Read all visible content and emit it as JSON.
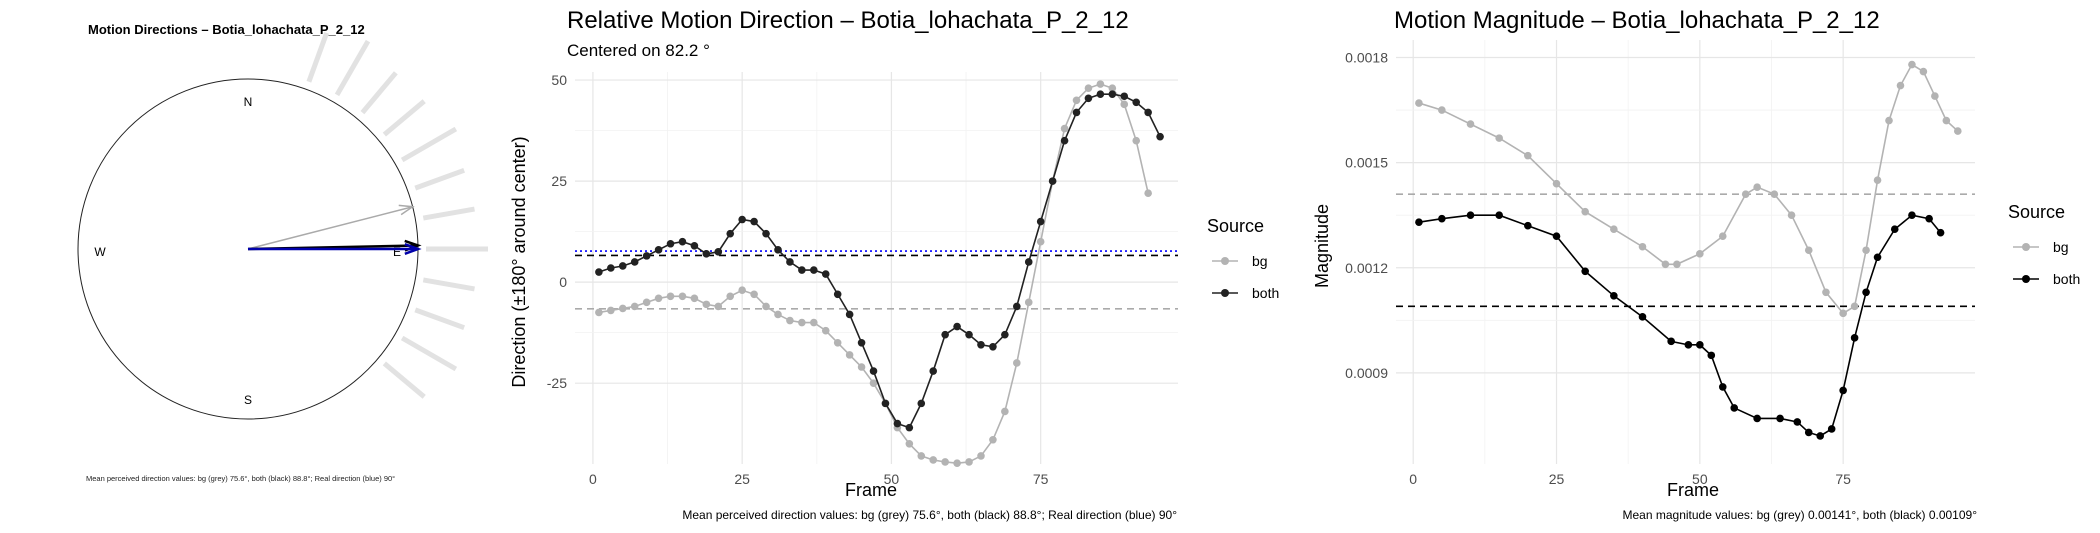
{
  "chart_data": [
    {
      "type": "compass",
      "title": "Motion Directions – Botia_lohachata_P_2_12",
      "cardinals": [
        "N",
        "E",
        "S",
        "W"
      ],
      "mean_arrows": [
        {
          "series": "bg",
          "angle_deg": 75.6,
          "color": "#aaaaaa"
        },
        {
          "series": "both",
          "angle_deg": 88.8,
          "color": "#000000"
        },
        {
          "series": "real",
          "angle_deg": 90,
          "color": "#0000aa"
        }
      ],
      "caption": "Mean perceived direction values: bg (grey) 75.6°, both (black) 88.8°; Real direction (blue) 90°"
    },
    {
      "type": "line",
      "title": "Relative Motion Direction – Botia_lohachata_P_2_12",
      "subtitle": "Centered on  82.2 °",
      "xlabel": "Frame",
      "ylabel": "Direction (±180° around center)",
      "xlim": [
        -3,
        98
      ],
      "ylim": [
        -45,
        52
      ],
      "xticks": [
        0,
        25,
        50,
        75
      ],
      "yticks": [
        -25,
        0,
        25,
        50
      ],
      "legend_title": "Source",
      "series": [
        {
          "name": "bg",
          "color": "#b3b3b3",
          "points": [
            [
              1,
              -7.5
            ],
            [
              3,
              -7
            ],
            [
              5,
              -6.5
            ],
            [
              7,
              -6
            ],
            [
              9,
              -5
            ],
            [
              11,
              -4
            ],
            [
              13,
              -3.5
            ],
            [
              15,
              -3.5
            ],
            [
              17,
              -4
            ],
            [
              19,
              -5.5
            ],
            [
              21,
              -6
            ],
            [
              23,
              -3.5
            ],
            [
              25,
              -2
            ],
            [
              27,
              -3
            ],
            [
              29,
              -6
            ],
            [
              31,
              -8
            ],
            [
              33,
              -9.5
            ],
            [
              35,
              -10
            ],
            [
              37,
              -10
            ],
            [
              39,
              -12
            ],
            [
              41,
              -15
            ],
            [
              43,
              -18
            ],
            [
              45,
              -21
            ],
            [
              47,
              -25
            ],
            [
              49,
              -30
            ],
            [
              51,
              -36
            ],
            [
              53,
              -40
            ],
            [
              55,
              -43
            ],
            [
              57,
              -44
            ],
            [
              59,
              -44.5
            ],
            [
              61,
              -44.8
            ],
            [
              63,
              -44.5
            ],
            [
              65,
              -43
            ],
            [
              67,
              -39
            ],
            [
              69,
              -32
            ],
            [
              71,
              -20
            ],
            [
              73,
              -5
            ],
            [
              75,
              10
            ],
            [
              77,
              25
            ],
            [
              79,
              38
            ],
            [
              81,
              45
            ],
            [
              83,
              48
            ],
            [
              85,
              49
            ],
            [
              87,
              48
            ],
            [
              89,
              44
            ],
            [
              91,
              35
            ],
            [
              93,
              22
            ]
          ]
        },
        {
          "name": "both",
          "color": "#222222",
          "points": [
            [
              1,
              2.5
            ],
            [
              3,
              3.5
            ],
            [
              5,
              4
            ],
            [
              7,
              5
            ],
            [
              9,
              6.5
            ],
            [
              11,
              8
            ],
            [
              13,
              9.5
            ],
            [
              15,
              10
            ],
            [
              17,
              9
            ],
            [
              19,
              7
            ],
            [
              21,
              7.5
            ],
            [
              23,
              12
            ],
            [
              25,
              15.5
            ],
            [
              27,
              15
            ],
            [
              29,
              12
            ],
            [
              31,
              8
            ],
            [
              33,
              5
            ],
            [
              35,
              3
            ],
            [
              37,
              3
            ],
            [
              39,
              2
            ],
            [
              41,
              -3
            ],
            [
              43,
              -8
            ],
            [
              45,
              -15
            ],
            [
              47,
              -22
            ],
            [
              49,
              -30
            ],
            [
              51,
              -35
            ],
            [
              53,
              -36
            ],
            [
              55,
              -30
            ],
            [
              57,
              -22
            ],
            [
              59,
              -13
            ],
            [
              61,
              -11
            ],
            [
              63,
              -13
            ],
            [
              65,
              -15.5
            ],
            [
              67,
              -16
            ],
            [
              69,
              -13
            ],
            [
              71,
              -6
            ],
            [
              73,
              5
            ],
            [
              75,
              15
            ],
            [
              77,
              25
            ],
            [
              79,
              35
            ],
            [
              81,
              42
            ],
            [
              83,
              45.5
            ],
            [
              85,
              46.5
            ],
            [
              87,
              46.5
            ],
            [
              89,
              46
            ],
            [
              91,
              44.5
            ],
            [
              93,
              42
            ],
            [
              95,
              36
            ]
          ]
        }
      ],
      "hlines": [
        {
          "y": 7.7,
          "color": "#0000ff",
          "style": "dotted"
        },
        {
          "y": 6.6,
          "color": "#000000",
          "style": "dashed"
        },
        {
          "y": -6.6,
          "color": "#aaaaaa",
          "style": "dashed"
        }
      ],
      "caption": "Mean perceived direction values: bg (grey) 75.6°, both (black) 88.8°; Real direction (blue) 90°"
    },
    {
      "type": "line",
      "title": "Motion Magnitude – Botia_lohachata_P_2_12",
      "xlabel": "Frame",
      "ylabel": "Magnitude",
      "xlim": [
        -3,
        98
      ],
      "ylim": [
        0.00064,
        0.00185
      ],
      "xticks": [
        0,
        25,
        50,
        75
      ],
      "yticks": [
        0.0009,
        0.0012,
        0.0015,
        0.0018
      ],
      "legend_title": "Source",
      "series": [
        {
          "name": "bg",
          "color": "#b3b3b3",
          "points": [
            [
              1,
              0.00167
            ],
            [
              5,
              0.00165
            ],
            [
              10,
              0.00161
            ],
            [
              15,
              0.00157
            ],
            [
              20,
              0.00152
            ],
            [
              25,
              0.00144
            ],
            [
              30,
              0.00136
            ],
            [
              35,
              0.00131
            ],
            [
              40,
              0.00126
            ],
            [
              44,
              0.00121
            ],
            [
              46,
              0.00121
            ],
            [
              50,
              0.00124
            ],
            [
              54,
              0.00129
            ],
            [
              58,
              0.00141
            ],
            [
              60,
              0.00143
            ],
            [
              63,
              0.00141
            ],
            [
              66,
              0.00135
            ],
            [
              69,
              0.00125
            ],
            [
              72,
              0.00113
            ],
            [
              75,
              0.00107
            ],
            [
              77,
              0.00109
            ],
            [
              79,
              0.00125
            ],
            [
              81,
              0.00145
            ],
            [
              83,
              0.00162
            ],
            [
              85,
              0.00172
            ],
            [
              87,
              0.00178
            ],
            [
              89,
              0.00176
            ],
            [
              91,
              0.00169
            ],
            [
              93,
              0.00162
            ],
            [
              95,
              0.00159
            ]
          ]
        },
        {
          "name": "both",
          "color": "#000000",
          "points": [
            [
              1,
              0.00133
            ],
            [
              5,
              0.00134
            ],
            [
              10,
              0.00135
            ],
            [
              15,
              0.00135
            ],
            [
              20,
              0.00132
            ],
            [
              25,
              0.00129
            ],
            [
              30,
              0.00119
            ],
            [
              35,
              0.00112
            ],
            [
              40,
              0.00106
            ],
            [
              45,
              0.00099
            ],
            [
              48,
              0.00098
            ],
            [
              50,
              0.00098
            ],
            [
              52,
              0.00095
            ],
            [
              54,
              0.00086
            ],
            [
              56,
              0.0008
            ],
            [
              60,
              0.00077
            ],
            [
              64,
              0.00077
            ],
            [
              67,
              0.00076
            ],
            [
              69,
              0.00073
            ],
            [
              71,
              0.00072
            ],
            [
              73,
              0.00074
            ],
            [
              75,
              0.00085
            ],
            [
              77,
              0.001
            ],
            [
              79,
              0.00113
            ],
            [
              81,
              0.00123
            ],
            [
              84,
              0.00131
            ],
            [
              87,
              0.00135
            ],
            [
              90,
              0.00134
            ],
            [
              92,
              0.0013
            ]
          ]
        }
      ],
      "hlines": [
        {
          "y": 0.00141,
          "color": "#aaaaaa",
          "style": "dashed"
        },
        {
          "y": 0.00109,
          "color": "#000000",
          "style": "dashed"
        }
      ],
      "caption": "Mean magnitude values: bg (grey) 0.00141°, both (black) 0.00109°"
    }
  ]
}
